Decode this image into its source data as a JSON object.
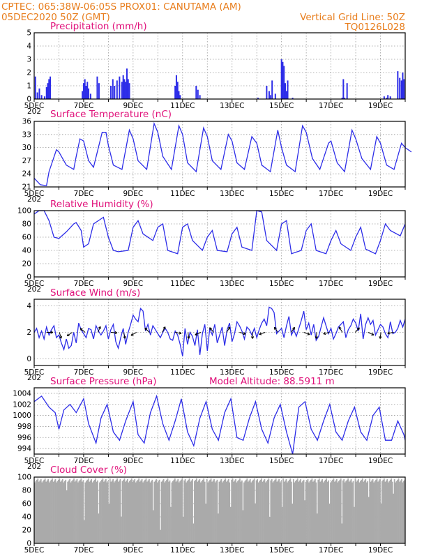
{
  "header": {
    "left_line1": "CPTEC:   065:38W-06:05S   PROX01: CANUTAMA (AM)",
    "left_line2": "05DEC2020 50Z (GMT)",
    "right_line1": "Vertical Grid Line: 50Z",
    "right_line2": "TQ0126L028"
  },
  "colors": {
    "header": "#e87d1c",
    "title": "#e0117a",
    "line": "#2d2de8",
    "cloud": "#aaaaaa",
    "grid": "#9a9a9a"
  },
  "chart_data": [
    {
      "type": "bar",
      "id": "precip",
      "title": "Precipitation (mm/h)",
      "ylim": [
        0,
        5
      ],
      "yticks": [
        "0",
        "1",
        "2",
        "3",
        "4",
        "5"
      ],
      "xlabels": [
        "5DEC",
        "7DEC",
        "9DEC",
        "11DEC",
        "13DEC",
        "15DEC",
        "17DEC",
        "19DEC"
      ],
      "year_label": "202",
      "x": [
        0.05,
        0.13,
        0.21,
        0.3,
        0.42,
        0.5,
        0.55,
        0.6,
        0.65,
        1.95,
        2.0,
        2.05,
        2.1,
        2.15,
        2.2,
        2.28,
        2.55,
        2.62,
        3.1,
        3.18,
        3.25,
        3.35,
        3.45,
        3.55,
        3.6,
        3.65,
        3.7,
        3.75,
        3.8,
        3.85,
        5.7,
        5.75,
        5.8,
        5.85,
        5.9,
        6.55,
        6.62,
        6.7,
        9.05,
        9.4,
        9.5,
        9.55,
        9.62,
        9.75,
        10.0,
        10.05,
        10.1,
        10.15,
        10.2,
        10.25,
        10.45,
        12.45,
        12.5,
        12.55,
        12.65,
        14.15,
        14.25,
        14.3,
        14.4,
        14.7,
        14.78,
        14.85,
        14.9,
        14.95
      ],
      "values": [
        1.7,
        0.5,
        0.8,
        0.3,
        0.2,
        0.9,
        1.2,
        1.5,
        1.7,
        0.6,
        1.2,
        1.5,
        1.0,
        1.3,
        0.8,
        0.4,
        1.7,
        1.2,
        1.0,
        1.5,
        1.0,
        1.4,
        1.7,
        1.3,
        1.8,
        1.5,
        1.3,
        2.3,
        1.5,
        1.2,
        1.0,
        1.8,
        1.3,
        0.6,
        0.3,
        1.0,
        0.7,
        0.3,
        0.1,
        1.0,
        0.6,
        0.3,
        1.4,
        0.4,
        3.0,
        2.8,
        2.5,
        1.2,
        0.6,
        1.4,
        0.1,
        0.1,
        1.5,
        0.1,
        1.2,
        0.2,
        0.1,
        0.3,
        0.2,
        2.1,
        1.6,
        1.4,
        2.0,
        1.5
      ]
    },
    {
      "type": "line",
      "id": "temp",
      "title": "Surface Temperature (nC)",
      "ylim": [
        21,
        36
      ],
      "yticks": [
        "21",
        "24",
        "27",
        "30",
        "33",
        "36"
      ],
      "xlabels": [
        "5DEC",
        "7DEC",
        "9DEC",
        "11DEC",
        "13DEC",
        "15DEC",
        "17DEC",
        "19DEC"
      ],
      "year_label": "202",
      "x": [
        0,
        0.25,
        0.5,
        0.6,
        0.9,
        1.0,
        1.3,
        1.6,
        1.7,
        1.85,
        2.0,
        2.2,
        2.4,
        2.75,
        2.9,
        3.0,
        3.2,
        3.55,
        3.85,
        4.0,
        4.2,
        4.55,
        4.85,
        5.0,
        5.2,
        5.55,
        5.85,
        6.0,
        6.2,
        6.55,
        6.85,
        7.0,
        7.2,
        7.55,
        7.85,
        8.0,
        8.2,
        8.5,
        8.8,
        9.0,
        9.2,
        9.55,
        9.85,
        10.0,
        10.2,
        10.55,
        10.85,
        11.0,
        11.25,
        11.55,
        11.9,
        12.0,
        12.25,
        12.55,
        12.85,
        13.0,
        13.25,
        13.6,
        13.85,
        14.0,
        14.25,
        14.55,
        14.85,
        15.0,
        15.25
      ],
      "values": [
        23,
        21.5,
        21.3,
        24.5,
        29.5,
        29.0,
        26.0,
        25.0,
        28.0,
        32.0,
        31.5,
        27.0,
        25.5,
        33.5,
        33.5,
        30.5,
        26.0,
        25.0,
        34.0,
        32.0,
        27.0,
        25.0,
        35.5,
        33.5,
        28.0,
        25.0,
        35.0,
        33.0,
        26.5,
        24.5,
        34.5,
        32.5,
        27.0,
        25.0,
        33.0,
        31.5,
        26.5,
        25.0,
        32.5,
        31.0,
        26.0,
        24.5,
        34.0,
        30.0,
        26.0,
        24.5,
        35.0,
        33.5,
        27.5,
        25.0,
        31.0,
        31.5,
        26.5,
        24.5,
        34.0,
        32.0,
        27.5,
        25.0,
        32.5,
        31.0,
        26.0,
        25.0,
        31.0,
        30.0,
        29.0
      ]
    },
    {
      "type": "line",
      "id": "rh",
      "title": "Relative Humidity (%)",
      "ylim": [
        0,
        100
      ],
      "yticks": [
        "0",
        "20",
        "40",
        "60",
        "80",
        "100"
      ],
      "xlabels": [
        "5DEC",
        "7DEC",
        "9DEC",
        "11DEC",
        "13DEC",
        "15DEC",
        "17DEC",
        "19DEC"
      ],
      "year_label": "202",
      "x": [
        0,
        0.2,
        0.4,
        0.6,
        0.8,
        1.0,
        1.3,
        1.6,
        1.7,
        1.9,
        2.0,
        2.2,
        2.4,
        2.8,
        3.0,
        3.2,
        3.4,
        3.8,
        4.0,
        4.2,
        4.4,
        4.8,
        5.0,
        5.2,
        5.4,
        5.8,
        6.0,
        6.2,
        6.4,
        6.8,
        7.0,
        7.2,
        7.4,
        7.8,
        8.0,
        8.2,
        8.4,
        8.8,
        9.0,
        9.2,
        9.4,
        9.8,
        10.0,
        10.2,
        10.4,
        10.8,
        11.0,
        11.2,
        11.4,
        11.8,
        12.0,
        12.2,
        12.4,
        12.8,
        13.0,
        13.2,
        13.4,
        13.8,
        14.0,
        14.2,
        14.4,
        14.8,
        15.0
      ],
      "values": [
        95,
        100,
        100,
        85,
        60,
        58,
        68,
        80,
        82,
        70,
        45,
        50,
        80,
        90,
        60,
        40,
        38,
        40,
        75,
        85,
        65,
        55,
        75,
        80,
        40,
        35,
        75,
        80,
        55,
        40,
        60,
        70,
        40,
        38,
        65,
        75,
        45,
        40,
        100,
        98,
        55,
        40,
        80,
        85,
        35,
        40,
        70,
        80,
        40,
        35,
        55,
        70,
        50,
        40,
        60,
        75,
        42,
        35,
        55,
        80,
        70,
        62,
        80
      ]
    },
    {
      "type": "line",
      "id": "wind",
      "title": "Surface Wind (m/s)",
      "ylim": [
        -0.5,
        4.5
      ],
      "yticks": [
        "0",
        "2",
        "4"
      ],
      "xlabels": [
        "5DEC",
        "7DEC",
        "9DEC",
        "11DEC",
        "13DEC",
        "15DEC",
        "17DEC",
        "19DEC"
      ],
      "year_label": "202",
      "x": [
        0,
        0.1,
        0.2,
        0.3,
        0.4,
        0.5,
        0.6,
        0.7,
        0.8,
        0.9,
        1.0,
        1.1,
        1.2,
        1.3,
        1.4,
        1.5,
        1.6,
        1.7,
        1.8,
        1.9,
        2.0,
        2.1,
        2.2,
        2.3,
        2.4,
        2.5,
        2.6,
        2.7,
        2.8,
        2.9,
        3.0,
        3.1,
        3.2,
        3.3,
        3.4,
        3.5,
        3.6,
        3.7,
        3.8,
        3.9,
        4.0,
        4.1,
        4.2,
        4.3,
        4.4,
        4.5,
        4.6,
        4.7,
        4.8,
        4.9,
        5.0,
        5.1,
        5.2,
        5.3,
        5.4,
        5.5,
        5.6,
        5.7,
        5.8,
        5.9,
        6.0,
        6.1,
        6.2,
        6.3,
        6.4,
        6.5,
        6.6,
        6.7,
        6.8,
        6.9,
        7.0,
        7.1,
        7.2,
        7.3,
        7.4,
        7.5,
        7.6,
        7.7,
        7.8,
        7.9,
        8.0,
        8.1,
        8.2,
        8.3,
        8.4,
        8.5,
        8.6,
        8.7,
        8.8,
        8.9,
        9.0,
        9.1,
        9.2,
        9.3,
        9.4,
        9.5,
        9.6,
        9.7,
        9.8,
        9.9,
        10.0,
        10.1,
        10.2,
        10.3,
        10.4,
        10.5,
        10.6,
        10.7,
        10.8,
        10.9,
        11.0,
        11.1,
        11.2,
        11.3,
        11.4,
        11.5,
        11.6,
        11.7,
        11.8,
        11.9,
        12.0,
        12.1,
        12.2,
        12.3,
        12.4,
        12.5,
        12.6,
        12.7,
        12.8,
        12.9,
        13.0,
        13.1,
        13.2,
        13.3,
        13.4,
        13.5,
        13.6,
        13.7,
        13.8,
        13.9,
        14.0,
        14.1,
        14.2,
        14.3,
        14.4,
        14.5,
        14.6,
        14.7,
        14.8,
        14.9,
        15.0
      ],
      "values": [
        2.0,
        2.3,
        1.6,
        2.1,
        1.5,
        2.4,
        1.8,
        2.2,
        2.5,
        1.6,
        1.8,
        1.2,
        0.7,
        1.5,
        0.8,
        1.0,
        2.0,
        1.2,
        2.7,
        2.2,
        1.9,
        1.6,
        2.3,
        2.2,
        1.5,
        2.5,
        2.1,
        1.8,
        2.1,
        2.5,
        1.5,
        2.2,
        2.6,
        1.3,
        0.8,
        1.6,
        2.3,
        1.1,
        2.0,
        2.6,
        3.3,
        3.0,
        2.8,
        3.8,
        3.6,
        2.1,
        2.6,
        1.8,
        2.5,
        2.2,
        1.9,
        1.6,
        2.0,
        2.3,
        2.0,
        1.5,
        1.4,
        2.1,
        1.8,
        1.1,
        0.2,
        2.3,
        1.1,
        2.0,
        1.7,
        1.0,
        2.2,
        0.3,
        1.9,
        2.6,
        0.6,
        2.3,
        1.8,
        2.6,
        1.2,
        1.8,
        2.4,
        1.0,
        2.2,
        2.7,
        1.3,
        1.9,
        2.8,
        2.5,
        2.1,
        1.5,
        2.4,
        2.2,
        1.8,
        2.3,
        1.6,
        2.2,
        2.7,
        3.0,
        2.5,
        3.9,
        3.8,
        3.5,
        1.9,
        2.1,
        2.3,
        1.6,
        2.5,
        3.2,
        1.8,
        2.2,
        1.7,
        2.3,
        2.9,
        3.6,
        2.2,
        2.7,
        1.8,
        2.6,
        1.4,
        1.7,
        2.4,
        3.1,
        2.5,
        1.9,
        2.3,
        1.5,
        1.9,
        2.4,
        2.6,
        2.8,
        1.6,
        2.2,
        2.5,
        3.0,
        2.7,
        2.1,
        3.4,
        1.5,
        2.6,
        3.1,
        2.6,
        2.9,
        1.8,
        2.2,
        2.6,
        2.4,
        1.9,
        1.6,
        2.8,
        1.9,
        2.0,
        2.3,
        2.9,
        2.4,
        3.0
      ]
    },
    {
      "type": "line",
      "id": "pres",
      "title": "Surface Pressure (hPa)",
      "annotation": "Model Altitude: 88.5911 m",
      "ylim": [
        993,
        1005
      ],
      "yticks": [
        "994",
        "996",
        "998",
        "1000",
        "1002",
        "1004"
      ],
      "xlabels": [
        "5DEC",
        "7DEC",
        "9DEC",
        "11DEC",
        "13DEC",
        "15DEC",
        "17DEC",
        "19DEC"
      ],
      "year_label": "202",
      "x": [
        0,
        0.3,
        0.6,
        0.85,
        1.0,
        1.2,
        1.45,
        1.7,
        2.0,
        2.2,
        2.5,
        2.7,
        2.95,
        3.2,
        3.45,
        3.7,
        4.0,
        4.2,
        4.45,
        4.7,
        4.95,
        5.2,
        5.45,
        5.7,
        5.95,
        6.2,
        6.45,
        6.7,
        6.95,
        7.2,
        7.45,
        7.7,
        7.95,
        8.2,
        8.45,
        8.7,
        8.95,
        9.2,
        9.45,
        9.7,
        9.95,
        10.2,
        10.45,
        10.7,
        10.95,
        11.2,
        11.45,
        11.7,
        11.95,
        12.2,
        12.45,
        12.7,
        12.95,
        13.2,
        13.45,
        13.7,
        13.95,
        14.2,
        14.45,
        14.7,
        14.95,
        15.0
      ],
      "values": [
        1002.5,
        1003.5,
        1001.5,
        1000.5,
        997.5,
        1001.0,
        1002.0,
        1000.5,
        1003.0,
        998.5,
        995.0,
        999.5,
        1002.0,
        997.0,
        995.5,
        999.0,
        1002.5,
        996.5,
        995.0,
        1000.5,
        1003.5,
        998.5,
        995.5,
        999.0,
        1003.0,
        997.0,
        994.5,
        999.5,
        1002.5,
        997.5,
        995.5,
        1000.5,
        1003.0,
        996.0,
        995.5,
        999.5,
        1002.5,
        997.5,
        995.0,
        999.5,
        1002.0,
        997.0,
        993.0,
        1001.5,
        1002.5,
        997.5,
        995.5,
        999.0,
        1002.0,
        997.0,
        995.5,
        999.0,
        1001.5,
        997.0,
        995.5,
        1000.0,
        1001.5,
        995.5,
        995.5,
        999.0,
        996.5,
        995.5
      ]
    },
    {
      "type": "bar",
      "id": "cloud",
      "title": "Cloud Cover (%)",
      "ylim": [
        0,
        100
      ],
      "yticks": [
        "0",
        "20",
        "40",
        "60",
        "80",
        "100"
      ],
      "xlabels": [
        "5DEC",
        "7DEC",
        "9DEC",
        "11DEC",
        "13DEC",
        "15DEC",
        "17DEC",
        "19DEC"
      ],
      "year_label": "",
      "bar_count": 360,
      "typical_value": 95,
      "x": [
        1.3,
        2.0,
        2.6,
        3.0,
        3.5,
        4.8,
        5.1,
        5.5,
        6.0,
        6.4,
        6.9,
        7.4,
        7.9,
        8.4,
        8.9,
        9.5,
        10.0,
        10.4,
        10.9,
        11.4,
        11.9,
        12.4,
        12.9,
        13.5,
        14.0,
        14.5
      ],
      "values": [
        80,
        35,
        45,
        60,
        40,
        50,
        20,
        55,
        40,
        30,
        60,
        45,
        55,
        50,
        60,
        40,
        55,
        60,
        65,
        45,
        60,
        30,
        55,
        70,
        60,
        75
      ]
    }
  ]
}
